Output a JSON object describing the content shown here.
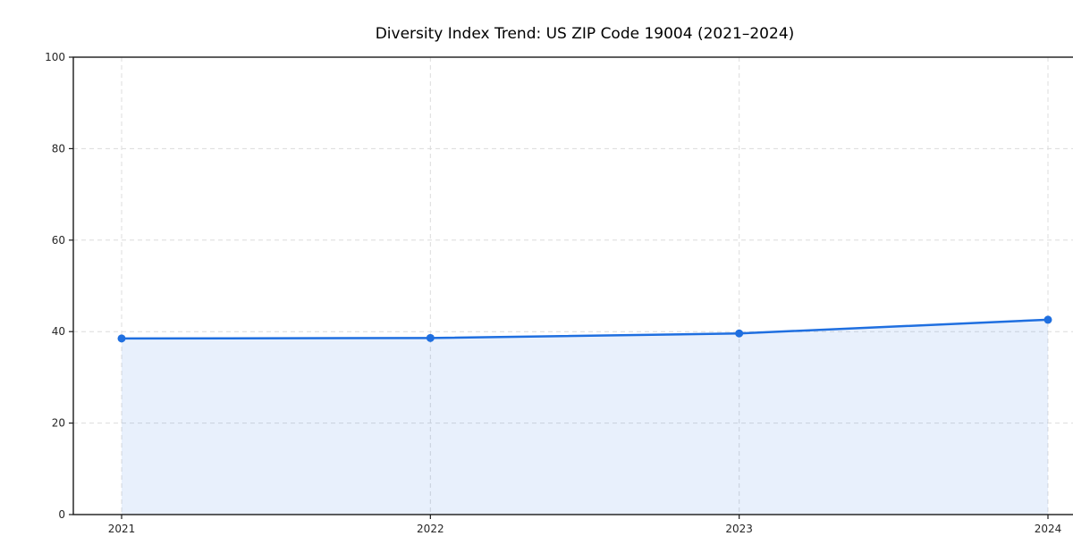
{
  "page": {
    "background_color": "#ffffff"
  },
  "chart_data": {
    "type": "area",
    "title": "Diversity Index Trend: US ZIP Code 19004 (2021–2024)",
    "categories": [
      "2021",
      "2022",
      "2023",
      "2024"
    ],
    "values": [
      38.5,
      38.6,
      39.6,
      42.6
    ],
    "xlabel": "",
    "ylabel": "",
    "ylim": [
      0,
      100
    ],
    "yticks": [
      0,
      20,
      40,
      60,
      80,
      100
    ],
    "grid": "dashed-both-axes",
    "legend_position": "none",
    "line_color": "#1f6fe0",
    "marker_color": "#1f6fe0",
    "fill_color": "rgba(31, 111, 224, 0.10)",
    "grid_color": "#dcdcdc",
    "spine_color": "#1a1a1a",
    "tick_label_color": "#262626"
  }
}
